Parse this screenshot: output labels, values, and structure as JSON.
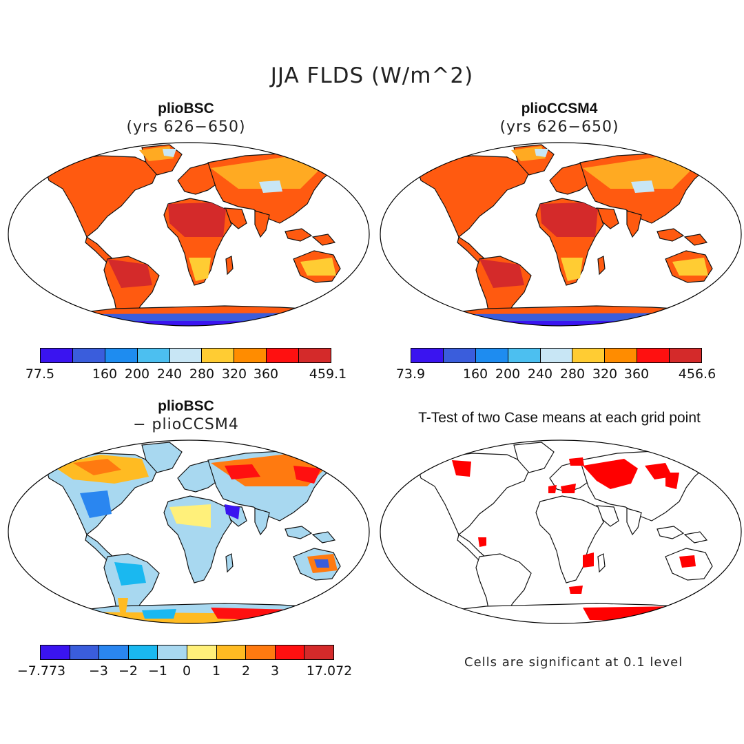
{
  "title": "JJA FLDS (W/m^2)",
  "panels": {
    "top_left": {
      "title": "plioBSC",
      "subtitle": "(yrs 626−650)"
    },
    "top_right": {
      "title": "plioCCSM4",
      "subtitle": "(yrs 626−650)"
    },
    "bottom_left": {
      "title": "plioBSC",
      "subtitle": "− plioCCSM4"
    },
    "bottom_right": {
      "title": "T-Test of two Case means at each grid point"
    }
  },
  "colorbars": {
    "top_left": {
      "colors": [
        "#3a14f0",
        "#3a5ddc",
        "#1e8cf0",
        "#4cbff0",
        "#c8e6f5",
        "#ffcc33",
        "#ff8c00",
        "#ff1010",
        "#d42a2a"
      ],
      "labels": [
        "77.5",
        "160",
        "200",
        "240",
        "280",
        "320",
        "360",
        "459.1"
      ]
    },
    "top_right": {
      "colors": [
        "#3a14f0",
        "#3a5ddc",
        "#1e8cf0",
        "#4cbff0",
        "#c8e6f5",
        "#ffcc33",
        "#ff8c00",
        "#ff1010",
        "#d42a2a"
      ],
      "labels": [
        "73.9",
        "160",
        "200",
        "240",
        "280",
        "320",
        "360",
        "456.6"
      ]
    },
    "bottom_left": {
      "colors": [
        "#3a14f0",
        "#3a5ddc",
        "#2a86f0",
        "#1ab8f0",
        "#a8d8f0",
        "#fff07a",
        "#ffbb22",
        "#ff7a10",
        "#ff1010",
        "#d42a2a"
      ],
      "labels": [
        "−7.773",
        "−3",
        "−2",
        "−1",
        "0",
        "1",
        "2",
        "3",
        "17.072"
      ]
    }
  },
  "note": "Cells are significant at 0.1 level"
}
